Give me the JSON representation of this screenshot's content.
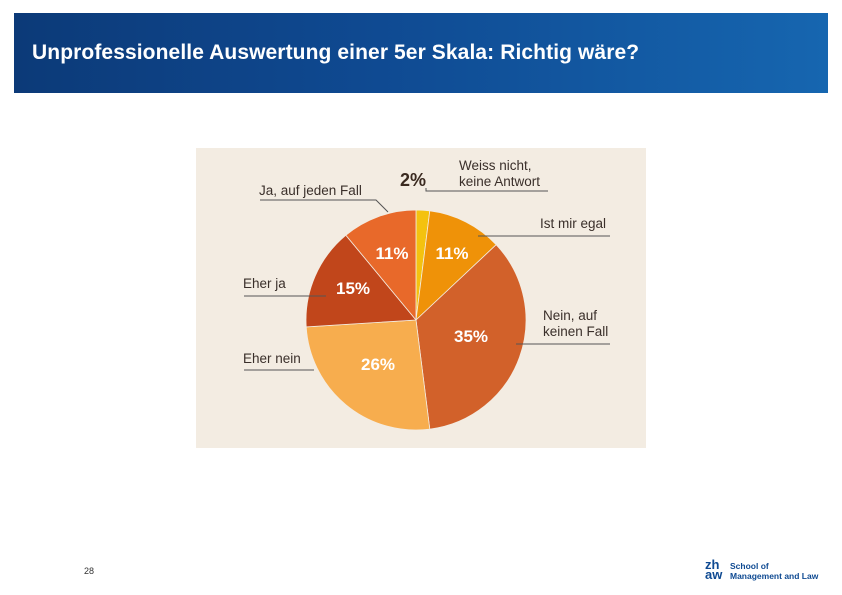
{
  "slide": {
    "title": "Unprofessionelle Auswertung einer 5er Skala: Richtig wäre?",
    "page_number": "28"
  },
  "logo": {
    "mark_line1": "zh",
    "mark_line2": "aw",
    "text_line1": "School of",
    "text_line2": "Management and Law"
  },
  "colors": {
    "header_start": "#0c3a78",
    "header_end": "#1666b0",
    "panel_background": "#f3ece2"
  },
  "chart_data": {
    "type": "pie",
    "title": "",
    "start_angle_deg": 0,
    "direction": "clockwise",
    "slices": [
      {
        "label": "Weiss nicht, keine Antwort",
        "label_lines": [
          "Weiss nicht,",
          "keine Antwort"
        ],
        "value": 2,
        "value_label": "2%",
        "color": "#f4c20f"
      },
      {
        "label": "Ist mir egal",
        "label_lines": [
          "Ist mir egal"
        ],
        "value": 11,
        "value_label": "11%",
        "color": "#ef9208"
      },
      {
        "label": "Nein, auf keinen Fall",
        "label_lines": [
          "Nein, auf",
          "keinen Fall"
        ],
        "value": 35,
        "value_label": "35%",
        "color": "#d2612a"
      },
      {
        "label": "Eher nein",
        "label_lines": [
          "Eher nein"
        ],
        "value": 26,
        "value_label": "26%",
        "color": "#f7ad4e"
      },
      {
        "label": "Eher ja",
        "label_lines": [
          "Eher ja"
        ],
        "value": 15,
        "value_label": "15%",
        "color": "#c1461b"
      },
      {
        "label": "Ja, auf jeden Fall",
        "label_lines": [
          "Ja, auf jeden Fall"
        ],
        "value": 11,
        "value_label": "11%",
        "color": "#e8692a"
      }
    ]
  }
}
